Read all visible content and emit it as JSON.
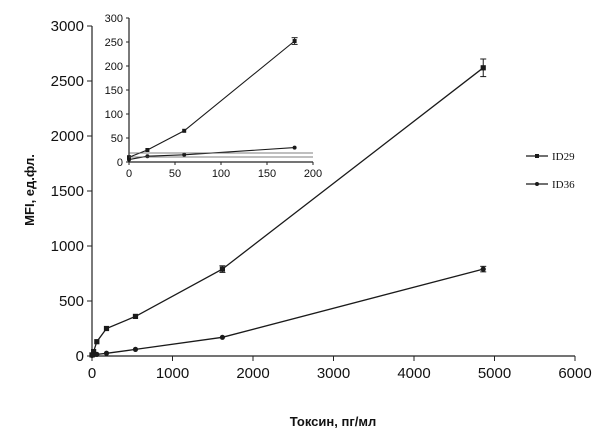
{
  "chart_data": [
    {
      "type": "line",
      "title": "",
      "xlabel": "Токсин,  пг/мл",
      "ylabel": "MFI, ед.фл.",
      "xlim": [
        0,
        6000
      ],
      "ylim": [
        0,
        3000
      ],
      "xticks": [
        "0",
        "1000",
        "2000",
        "3000",
        "4000",
        "5000",
        "6000"
      ],
      "yticks": [
        "0",
        "500",
        "1000",
        "1500",
        "2000",
        "2500",
        "3000"
      ],
      "grid": false,
      "legend": "right",
      "series": [
        {
          "name": "ID29",
          "x": [
            0,
            20,
            60,
            180,
            540,
            1620,
            4860
          ],
          "y": [
            10,
            40,
            130,
            250,
            360,
            790,
            2620
          ],
          "err": [
            0,
            0,
            0,
            0,
            0,
            30,
            80
          ]
        },
        {
          "name": "ID36",
          "x": [
            0,
            20,
            60,
            180,
            540,
            1620,
            4860
          ],
          "y": [
            5,
            10,
            15,
            25,
            60,
            170,
            790
          ],
          "err": [
            0,
            0,
            0,
            0,
            0,
            0,
            25
          ]
        }
      ]
    },
    {
      "type": "line",
      "title": "",
      "xlabel": "",
      "ylabel": "",
      "xlim": [
        0,
        200
      ],
      "ylim": [
        0,
        300
      ],
      "xticks": [
        "0",
        "50",
        "100",
        "150",
        "200"
      ],
      "yticks": [
        "0",
        "50",
        "100",
        "150",
        "200",
        "250",
        "300"
      ],
      "grid": false,
      "series": [
        {
          "x": [
            0,
            20,
            60,
            180
          ],
          "y": [
            10,
            25,
            65,
            252
          ],
          "err": [
            0,
            0,
            0,
            7
          ]
        },
        {
          "x": [
            0,
            20,
            60,
            180
          ],
          "y": [
            5,
            12,
            15,
            30
          ],
          "err": [
            0,
            0,
            0,
            0
          ]
        }
      ]
    }
  ]
}
